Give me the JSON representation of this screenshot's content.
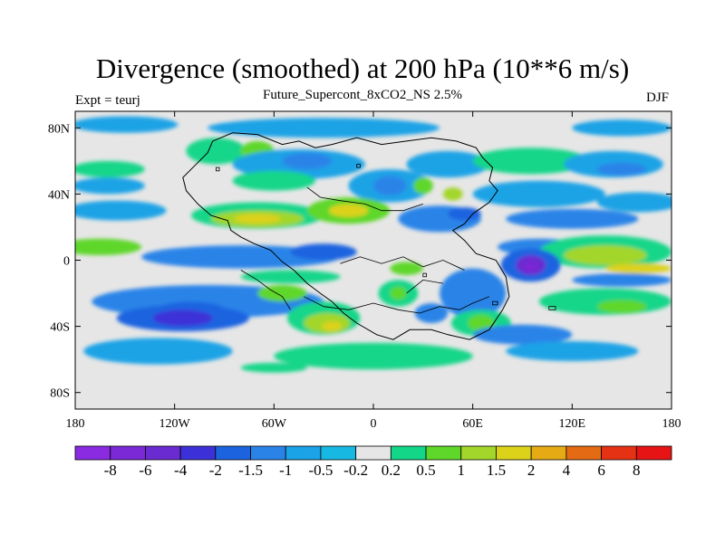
{
  "header": {
    "title": "Divergence (smoothed) at 200 hPa (10**6 m/s)",
    "subtitle": "Future_Supercont_8xCO2_NS 2.5%",
    "expt": "Expt = teurj",
    "season": "DJF"
  },
  "map": {
    "lon_range": [
      -180,
      180
    ],
    "lat_range": [
      -90,
      90
    ],
    "lat_ticks": [
      {
        "value": 80,
        "label": "80N"
      },
      {
        "value": 40,
        "label": "40N"
      },
      {
        "value": 0,
        "label": "0"
      },
      {
        "value": -40,
        "label": "40S"
      },
      {
        "value": -80,
        "label": "80S"
      }
    ],
    "lon_ticks": [
      {
        "value": -180,
        "label": "180"
      },
      {
        "value": -120,
        "label": "120W"
      },
      {
        "value": -60,
        "label": "60W"
      },
      {
        "value": 0,
        "label": "0"
      },
      {
        "value": 60,
        "label": "60E"
      },
      {
        "value": 120,
        "label": "120E"
      },
      {
        "value": 180,
        "label": "180"
      }
    ],
    "background_color": "#e6e6e6",
    "blobs": [
      {
        "lon": -150,
        "lat": 82,
        "rx": 32,
        "ry": 5,
        "c": 6
      },
      {
        "lon": -30,
        "lat": 80,
        "rx": 70,
        "ry": 6,
        "c": 6
      },
      {
        "lon": 150,
        "lat": 80,
        "rx": 30,
        "ry": 5,
        "c": 6
      },
      {
        "lon": -95,
        "lat": 66,
        "rx": 18,
        "ry": 8,
        "c": 9
      },
      {
        "lon": -70,
        "lat": 66,
        "rx": 10,
        "ry": 6,
        "c": 10
      },
      {
        "lon": -45,
        "lat": 58,
        "rx": 40,
        "ry": 9,
        "c": 6
      },
      {
        "lon": -40,
        "lat": 60,
        "rx": 15,
        "ry": 5,
        "c": 5
      },
      {
        "lon": 45,
        "lat": 58,
        "rx": 25,
        "ry": 8,
        "c": 6
      },
      {
        "lon": 95,
        "lat": 60,
        "rx": 35,
        "ry": 8,
        "c": 9
      },
      {
        "lon": 145,
        "lat": 58,
        "rx": 30,
        "ry": 8,
        "c": 6
      },
      {
        "lon": 150,
        "lat": 55,
        "rx": 15,
        "ry": 4,
        "c": 5
      },
      {
        "lon": -160,
        "lat": 55,
        "rx": 22,
        "ry": 5,
        "c": 9
      },
      {
        "lon": -160,
        "lat": 45,
        "rx": 22,
        "ry": 5,
        "c": 6
      },
      {
        "lon": -60,
        "lat": 48,
        "rx": 25,
        "ry": 6,
        "c": 9
      },
      {
        "lon": 10,
        "lat": 45,
        "rx": 25,
        "ry": 10,
        "c": 6
      },
      {
        "lon": 10,
        "lat": 45,
        "rx": 10,
        "ry": 6,
        "c": 5
      },
      {
        "lon": 30,
        "lat": 45,
        "rx": 6,
        "ry": 5,
        "c": 10
      },
      {
        "lon": 48,
        "lat": 40,
        "rx": 6,
        "ry": 4,
        "c": 11
      },
      {
        "lon": 100,
        "lat": 40,
        "rx": 40,
        "ry": 8,
        "c": 6
      },
      {
        "lon": 160,
        "lat": 35,
        "rx": 25,
        "ry": 6,
        "c": 6
      },
      {
        "lon": -155,
        "lat": 30,
        "rx": 30,
        "ry": 6,
        "c": 6
      },
      {
        "lon": -70,
        "lat": 27,
        "rx": 40,
        "ry": 8,
        "c": 9
      },
      {
        "lon": -70,
        "lat": 25,
        "rx": 28,
        "ry": 5,
        "c": 11
      },
      {
        "lon": -70,
        "lat": 25,
        "rx": 14,
        "ry": 3,
        "c": 12
      },
      {
        "lon": -15,
        "lat": 30,
        "rx": 25,
        "ry": 8,
        "c": 10
      },
      {
        "lon": -15,
        "lat": 30,
        "rx": 12,
        "ry": 4,
        "c": 12
      },
      {
        "lon": 40,
        "lat": 25,
        "rx": 25,
        "ry": 8,
        "c": 5
      },
      {
        "lon": 55,
        "lat": 28,
        "rx": 10,
        "ry": 4,
        "c": 4
      },
      {
        "lon": 120,
        "lat": 25,
        "rx": 40,
        "ry": 6,
        "c": 5
      },
      {
        "lon": -165,
        "lat": 8,
        "rx": 25,
        "ry": 5,
        "c": 10
      },
      {
        "lon": -80,
        "lat": 2,
        "rx": 60,
        "ry": 7,
        "c": 5
      },
      {
        "lon": -30,
        "lat": 5,
        "rx": 20,
        "ry": 5,
        "c": 4
      },
      {
        "lon": 20,
        "lat": -5,
        "rx": 10,
        "ry": 4,
        "c": 10
      },
      {
        "lon": 100,
        "lat": 8,
        "rx": 25,
        "ry": 5,
        "c": 5
      },
      {
        "lon": 140,
        "lat": 5,
        "rx": 40,
        "ry": 10,
        "c": 9
      },
      {
        "lon": 140,
        "lat": 3,
        "rx": 25,
        "ry": 6,
        "c": 11
      },
      {
        "lon": 160,
        "lat": -5,
        "rx": 20,
        "ry": 3,
        "c": 12
      },
      {
        "lon": 95,
        "lat": -3,
        "rx": 18,
        "ry": 10,
        "c": 4
      },
      {
        "lon": 95,
        "lat": -3,
        "rx": 9,
        "ry": 6,
        "c": 2
      },
      {
        "lon": 95,
        "lat": -4,
        "rx": 4,
        "ry": 3,
        "c": 1
      },
      {
        "lon": -100,
        "lat": -25,
        "rx": 70,
        "ry": 10,
        "c": 5
      },
      {
        "lon": -110,
        "lat": -30,
        "rx": 20,
        "ry": 5,
        "c": 4
      },
      {
        "lon": -115,
        "lat": -35,
        "rx": 40,
        "ry": 8,
        "c": 4
      },
      {
        "lon": -115,
        "lat": -35,
        "rx": 18,
        "ry": 5,
        "c": 3
      },
      {
        "lon": -55,
        "lat": -20,
        "rx": 15,
        "ry": 5,
        "c": 10
      },
      {
        "lon": -30,
        "lat": -35,
        "rx": 22,
        "ry": 10,
        "c": 9
      },
      {
        "lon": -28,
        "lat": -38,
        "rx": 14,
        "ry": 6,
        "c": 11
      },
      {
        "lon": -25,
        "lat": -40,
        "rx": 6,
        "ry": 3,
        "c": 12
      },
      {
        "lon": 15,
        "lat": -20,
        "rx": 12,
        "ry": 8,
        "c": 9
      },
      {
        "lon": 15,
        "lat": -20,
        "rx": 5,
        "ry": 4,
        "c": 10
      },
      {
        "lon": 35,
        "lat": -32,
        "rx": 10,
        "ry": 6,
        "c": 5
      },
      {
        "lon": 60,
        "lat": -20,
        "rx": 20,
        "ry": 15,
        "c": 5
      },
      {
        "lon": 65,
        "lat": -38,
        "rx": 18,
        "ry": 8,
        "c": 9
      },
      {
        "lon": 65,
        "lat": -38,
        "rx": 8,
        "ry": 5,
        "c": 10
      },
      {
        "lon": 90,
        "lat": -45,
        "rx": 30,
        "ry": 6,
        "c": 5
      },
      {
        "lon": 140,
        "lat": -25,
        "rx": 40,
        "ry": 8,
        "c": 9
      },
      {
        "lon": 150,
        "lat": -28,
        "rx": 15,
        "ry": 4,
        "c": 10
      },
      {
        "lon": 120,
        "lat": -55,
        "rx": 40,
        "ry": 6,
        "c": 6
      },
      {
        "lon": 150,
        "lat": -12,
        "rx": 30,
        "ry": 4,
        "c": 5
      },
      {
        "lon": -130,
        "lat": -55,
        "rx": 45,
        "ry": 8,
        "c": 6
      },
      {
        "lon": 0,
        "lat": -58,
        "rx": 60,
        "ry": 8,
        "c": 9
      },
      {
        "lon": -60,
        "lat": -65,
        "rx": 20,
        "ry": 3,
        "c": 9
      },
      {
        "lon": -50,
        "lat": -10,
        "rx": 30,
        "ry": 4,
        "c": 9
      }
    ],
    "land_outline": [
      [
        -97,
        72
      ],
      [
        -85,
        77
      ],
      [
        -70,
        76
      ],
      [
        -55,
        70
      ],
      [
        -45,
        72
      ],
      [
        -35,
        68
      ],
      [
        -25,
        70
      ],
      [
        -10,
        74
      ],
      [
        5,
        70
      ],
      [
        20,
        72
      ],
      [
        35,
        74
      ],
      [
        50,
        72
      ],
      [
        62,
        68
      ],
      [
        66,
        62
      ],
      [
        72,
        56
      ],
      [
        70,
        48
      ],
      [
        75,
        42
      ],
      [
        70,
        35
      ],
      [
        60,
        28
      ],
      [
        55,
        22
      ],
      [
        48,
        18
      ],
      [
        55,
        12
      ],
      [
        62,
        4
      ],
      [
        74,
        0
      ],
      [
        80,
        -10
      ],
      [
        82,
        -22
      ],
      [
        78,
        -30
      ],
      [
        70,
        -42
      ],
      [
        58,
        -48
      ],
      [
        45,
        -45
      ],
      [
        35,
        -42
      ],
      [
        22,
        -42
      ],
      [
        12,
        -48
      ],
      [
        2,
        -45
      ],
      [
        -10,
        -38
      ],
      [
        -18,
        -32
      ],
      [
        -25,
        -25
      ],
      [
        -32,
        -20
      ],
      [
        -40,
        -14
      ],
      [
        -48,
        -6
      ],
      [
        -55,
        -1
      ],
      [
        -62,
        6
      ],
      [
        -72,
        10
      ],
      [
        -80,
        14
      ],
      [
        -86,
        18
      ],
      [
        -88,
        24
      ],
      [
        -98,
        27
      ],
      [
        -106,
        34
      ],
      [
        -113,
        42
      ],
      [
        -115,
        50
      ],
      [
        -108,
        57
      ],
      [
        -100,
        65
      ],
      [
        -97,
        72
      ]
    ],
    "inner_lines": [
      [
        [
          -40,
          44
        ],
        [
          -32,
          38
        ],
        [
          -20,
          36
        ],
        [
          -5,
          34
        ],
        [
          5,
          30
        ],
        [
          18,
          30
        ],
        [
          30,
          34
        ]
      ],
      [
        [
          -42,
          -22
        ],
        [
          -30,
          -28
        ],
        [
          -15,
          -30
        ],
        [
          0,
          -26
        ],
        [
          15,
          -30
        ],
        [
          28,
          -32
        ],
        [
          40,
          -28
        ],
        [
          52,
          -30
        ],
        [
          60,
          -26
        ],
        [
          70,
          -22
        ]
      ],
      [
        [
          -20,
          -2
        ],
        [
          -8,
          2
        ],
        [
          5,
          -2
        ],
        [
          18,
          2
        ],
        [
          30,
          -4
        ],
        [
          42,
          0
        ],
        [
          55,
          -6
        ]
      ],
      [
        [
          -80,
          -6
        ],
        [
          -70,
          -12
        ],
        [
          -62,
          -18
        ],
        [
          -55,
          -22
        ],
        [
          -50,
          -30
        ]
      ],
      [
        [
          20,
          -20
        ],
        [
          30,
          -12
        ],
        [
          42,
          -14
        ]
      ]
    ],
    "islands": [
      {
        "lon": 106,
        "lat": -28,
        "w": 4,
        "h": 2
      },
      {
        "lon": -95,
        "lat": 56,
        "w": 2,
        "h": 2
      },
      {
        "lon": 30,
        "lat": -8,
        "w": 2,
        "h": 2
      },
      {
        "lon": -10,
        "lat": 58,
        "w": 2,
        "h": 2
      },
      {
        "lon": 72,
        "lat": -25,
        "w": 3,
        "h": 2
      }
    ]
  },
  "colorbar": {
    "colors": [
      "#8a2be2",
      "#7b28d6",
      "#6a2bd0",
      "#3c31d8",
      "#1c63e0",
      "#2a84e8",
      "#1aa3e6",
      "#17b9e3",
      "#e6e6e6",
      "#14d689",
      "#5fd72a",
      "#a3d62a",
      "#dcd21a",
      "#e6ab14",
      "#e46b14",
      "#e63214",
      "#e61414"
    ],
    "labels": [
      "-8",
      "-6",
      "-4",
      "-2",
      "-1.5",
      "-1",
      "-0.5",
      "-0.2",
      "0.2",
      "0.5",
      "1",
      "1.5",
      "2",
      "4",
      "6",
      "8"
    ]
  }
}
